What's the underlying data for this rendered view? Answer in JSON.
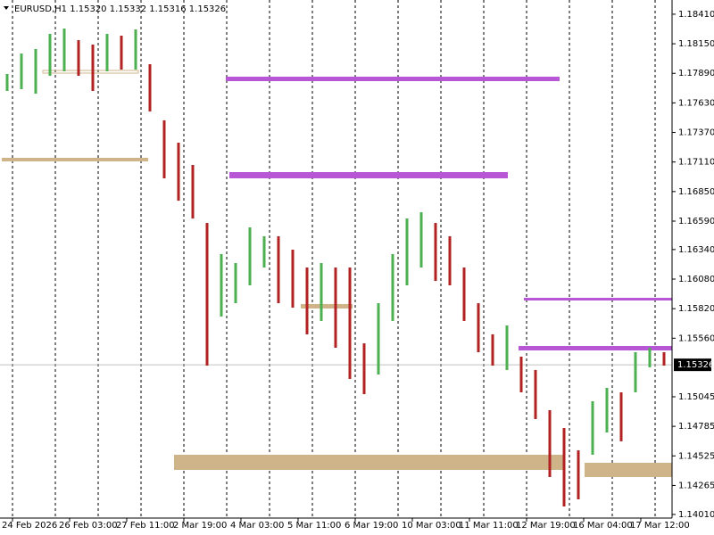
{
  "chart_data": {
    "type": "ohlc",
    "title": "EURUSD,H1  1.15320 1.15332 1.15316 1.15326",
    "high": [
      1.17884,
      1.18064,
      1.18104,
      1.18237,
      1.18284,
      1.18182,
      1.18143,
      1.18237,
      1.18221,
      1.18276,
      1.1797,
      1.17476,
      1.1728,
      1.17084,
      1.16574,
      1.163,
      1.16221,
      1.16535,
      1.16457,
      1.16457,
      1.16339,
      1.16182,
      1.16221,
      1.16182,
      1.16182,
      1.15515,
      1.15868,
      1.163,
      1.16613,
      1.16668,
      1.16574,
      1.16457,
      1.16182,
      1.15868,
      1.15594,
      1.15672,
      1.15398,
      1.1528,
      1.14927,
      1.1477,
      1.14574,
      1.15006,
      1.15123,
      1.15084,
      1.15437,
      1.15476,
      1.15437
    ],
    "low": [
      1.17735,
      1.17751,
      1.17711,
      1.17868,
      1.17908,
      1.17868,
      1.17735,
      1.17908,
      1.17923,
      1.17923,
      1.17555,
      1.16966,
      1.1677,
      1.16613,
      1.15319,
      1.15751,
      1.15868,
      1.16025,
      1.16182,
      1.15868,
      1.15829,
      1.15594,
      1.15712,
      1.15476,
      1.15202,
      1.15068,
      1.15241,
      1.15712,
      1.16025,
      1.16182,
      1.16064,
      1.16025,
      1.15712,
      1.15437,
      1.15319,
      1.1528,
      1.15084,
      1.14849,
      1.14339,
      1.1408,
      1.14143,
      1.14535,
      1.14731,
      1.14653,
      1.15084,
      1.15304,
      1.15319
    ],
    "current_price": 1.15326,
    "ylim": [
      1.13986,
      1.18535
    ],
    "yticks": [
      {
        "value": 1.1841,
        "label": "1.18410"
      },
      {
        "value": 1.1815,
        "label": "1.18150"
      },
      {
        "value": 1.1789,
        "label": "1.17890"
      },
      {
        "value": 1.1763,
        "label": "1.17630"
      },
      {
        "value": 1.1737,
        "label": "1.17370"
      },
      {
        "value": 1.1711,
        "label": "1.17110"
      },
      {
        "value": 1.1685,
        "label": "1.16850"
      },
      {
        "value": 1.1659,
        "label": "1.16590"
      },
      {
        "value": 1.1634,
        "label": "1.16340"
      },
      {
        "value": 1.1608,
        "label": "1.16080"
      },
      {
        "value": 1.1582,
        "label": "1.15820"
      },
      {
        "value": 1.1556,
        "label": "1.15560"
      },
      1.15045,
      1.14785,
      1.14525,
      1.14265,
      {
        "value": 1.1401,
        "label": "1.14010"
      }
    ],
    "xticks": [
      "24 Feb 2026",
      "26 Feb 03:00",
      "27 Feb 11:00",
      "2 Mar 19:00",
      "4 Mar 03:00",
      "5 Mar 11:00",
      "6 Mar 19:00",
      "10 Mar 03:00",
      "11 Mar 11:00",
      "12 Mar 19:00",
      "16 Mar 04:00",
      "17 Mar 12:00"
    ],
    "up_color": "#4caf50",
    "down_color": "#b22222"
  }
}
